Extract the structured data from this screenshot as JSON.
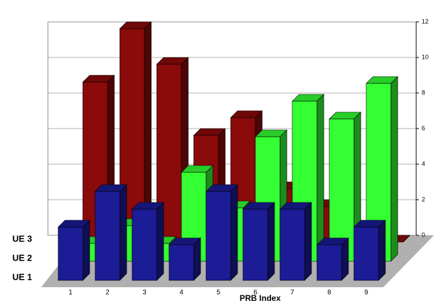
{
  "chart_data": {
    "type": "bar3d",
    "x_label": "PRB Index",
    "categories": [
      "1",
      "2",
      "3",
      "4",
      "5",
      "6",
      "7",
      "8",
      "9"
    ],
    "series": [
      {
        "name": "UE 1",
        "color": "#1c1c96",
        "values": [
          3,
          5,
          4,
          2,
          5,
          4,
          4,
          2,
          3
        ]
      },
      {
        "name": "UE 2",
        "color": "#33ff33",
        "values": [
          1,
          2,
          1,
          5,
          3,
          7,
          9,
          8,
          10
        ]
      },
      {
        "name": "UE 3",
        "color": "#8b0a0a",
        "values": [
          9,
          12,
          10,
          6,
          7,
          3,
          2,
          0,
          0
        ]
      }
    ],
    "ylim": [
      0,
      12
    ],
    "yticks": [
      0,
      2,
      4,
      6,
      8,
      10,
      12
    ],
    "grid": true
  }
}
